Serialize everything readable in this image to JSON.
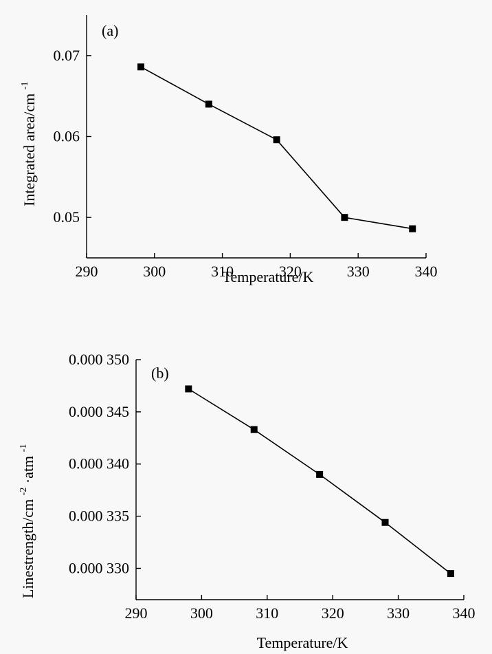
{
  "chart_data": [
    {
      "type": "line",
      "panel_label": "(a)",
      "xlabel": "Temperature/K",
      "ylabel": {
        "main": "Integrated area/cm",
        "sup": "-1"
      },
      "xlim": [
        290,
        340
      ],
      "ylim": [
        0.045,
        0.075
      ],
      "xticks": [
        290,
        300,
        310,
        320,
        330,
        340
      ],
      "xtick_labels": [
        "290",
        "300",
        "310",
        "320",
        "330",
        "340"
      ],
      "yticks": [
        0.05,
        0.06,
        0.07
      ],
      "ytick_labels": [
        "0.05",
        "0.06",
        "0.07"
      ],
      "grid": false,
      "series": [
        {
          "x": [
            298,
            308,
            318,
            328,
            338
          ],
          "y": [
            0.0686,
            0.064,
            0.0596,
            0.05,
            0.0486
          ]
        }
      ]
    },
    {
      "type": "line",
      "panel_label": "(b)",
      "xlabel": "Temperature/K",
      "ylabel": {
        "main": "Linestrength/cm",
        "sup1": "-2",
        "mid": "·atm",
        "sup2": "-1"
      },
      "xlim": [
        290,
        340
      ],
      "ylim": [
        0.000327,
        0.00035
      ],
      "xticks": [
        290,
        300,
        310,
        320,
        330,
        340
      ],
      "xtick_labels": [
        "290",
        "300",
        "310",
        "320",
        "330",
        "340"
      ],
      "yticks": [
        0.00033,
        0.000335,
        0.00034,
        0.000345,
        0.00035
      ],
      "ytick_labels": [
        "0.000 330",
        "0.000 335",
        "0.000 340",
        "0.000 345",
        "0.000 350"
      ],
      "grid": false,
      "series": [
        {
          "x": [
            298,
            308,
            318,
            328,
            338
          ],
          "y": [
            0.0003472,
            0.0003433,
            0.000339,
            0.0003344,
            0.0003295
          ]
        }
      ]
    }
  ]
}
